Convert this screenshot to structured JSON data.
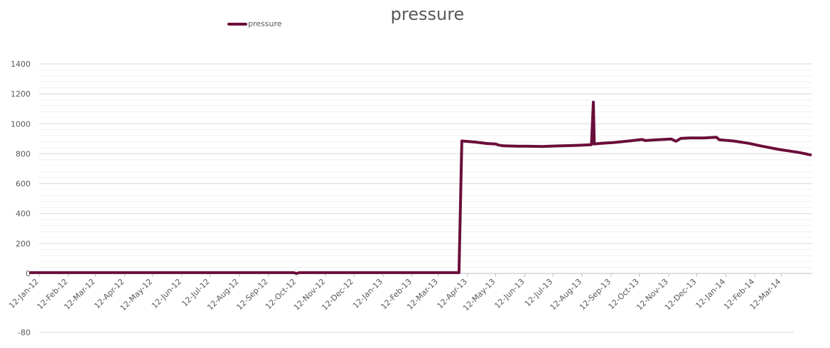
{
  "chart_data": {
    "type": "line",
    "title": "pressure",
    "xlabel": "",
    "ylabel": "",
    "ylim": [
      0,
      1400
    ],
    "yticks": [
      0,
      200,
      400,
      600,
      800,
      1000,
      1200,
      1400
    ],
    "extra_ytick": -80,
    "grid": true,
    "legend_position": "top-left",
    "xtick_labels": [
      "12-Jan-12",
      "12-Feb-12",
      "12-Mar-12",
      "12-Apr-12",
      "12-May-12",
      "12-Jun-12",
      "12-Jul-12",
      "12-Aug-12",
      "12-Sep-12",
      "12-Oct-12",
      "12-Nov-12",
      "12-Dec-12",
      "12-Jan-13",
      "12-Feb-13",
      "12-Mar-13",
      "12-Apr-13",
      "12-May-13",
      "12-Jun-13",
      "12-Jul-13",
      "12-Aug-13",
      "12-Sep-13",
      "12-Oct-13",
      "12-Nov-13",
      "12-Dec-13",
      "12-Jan-14",
      "12-Feb-14",
      "12-Mar-14"
    ],
    "series": [
      {
        "name": "pressure",
        "color": "#6b0d3b",
        "points": [
          [
            "2012-01-03",
            5
          ],
          [
            "2012-10-09",
            5
          ],
          [
            "2012-10-12",
            0
          ],
          [
            "2012-10-15",
            5
          ],
          [
            "2013-04-03",
            5
          ],
          [
            "2013-04-06",
            885
          ],
          [
            "2013-04-20",
            878
          ],
          [
            "2013-05-03",
            868
          ],
          [
            "2013-05-12",
            865
          ],
          [
            "2013-05-15",
            858
          ],
          [
            "2013-05-20",
            853
          ],
          [
            "2013-06-05",
            850
          ],
          [
            "2013-06-15",
            850
          ],
          [
            "2013-07-01",
            848
          ],
          [
            "2013-07-15",
            852
          ],
          [
            "2013-08-05",
            855
          ],
          [
            "2013-08-22",
            860
          ],
          [
            "2013-08-24",
            1145
          ],
          [
            "2013-08-25",
            865
          ],
          [
            "2013-09-02",
            870
          ],
          [
            "2013-09-15",
            875
          ],
          [
            "2013-10-05",
            888
          ],
          [
            "2013-10-15",
            895
          ],
          [
            "2013-10-18",
            888
          ],
          [
            "2013-11-01",
            893
          ],
          [
            "2013-11-15",
            898
          ],
          [
            "2013-11-20",
            883
          ],
          [
            "2013-11-25",
            902
          ],
          [
            "2013-12-05",
            905
          ],
          [
            "2013-12-20",
            905
          ],
          [
            "2014-01-02",
            910
          ],
          [
            "2014-01-05",
            893
          ],
          [
            "2014-01-20",
            885
          ],
          [
            "2014-02-05",
            870
          ],
          [
            "2014-02-20",
            850
          ],
          [
            "2014-03-10",
            828
          ],
          [
            "2014-03-31",
            808
          ],
          [
            "2014-04-12",
            792
          ]
        ]
      }
    ]
  }
}
